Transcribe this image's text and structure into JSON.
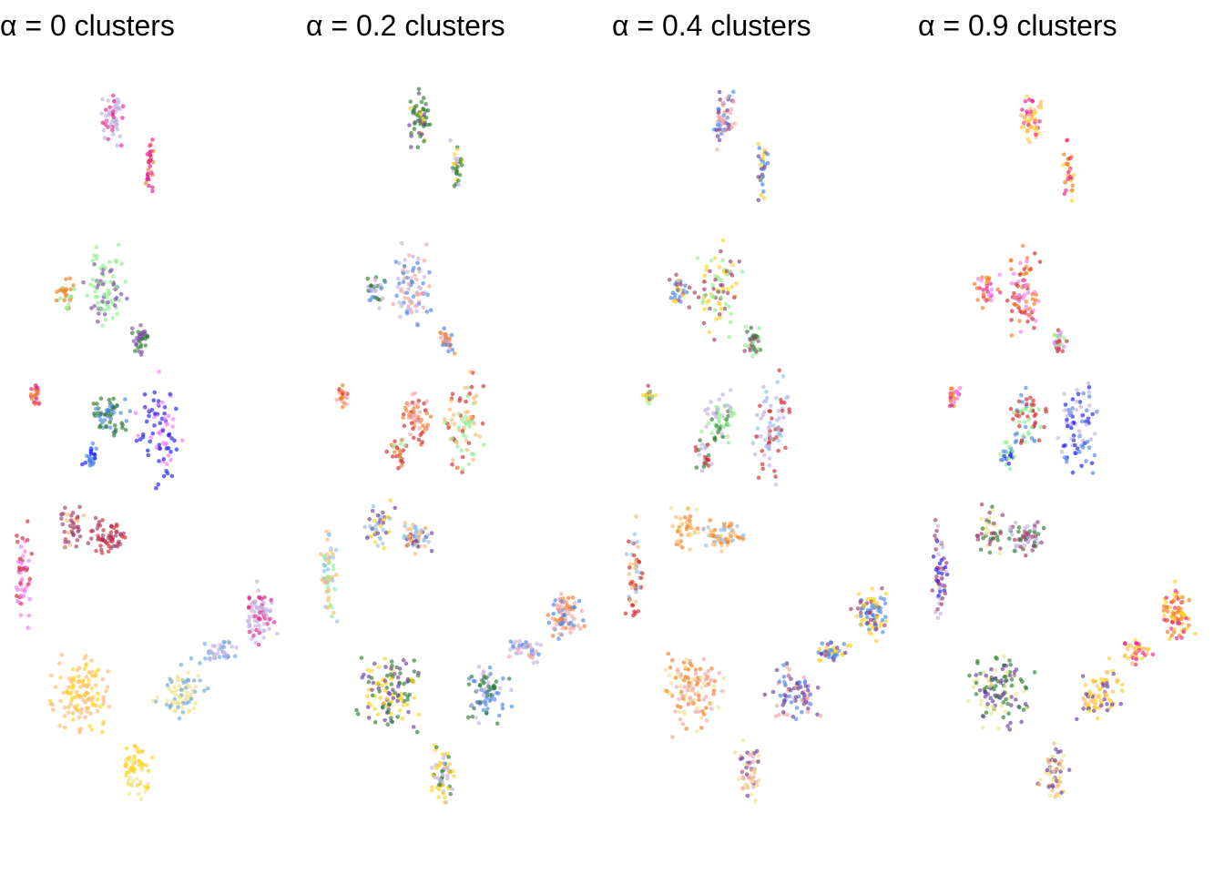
{
  "figure": {
    "panel_titles": [
      "α = 0 clusters",
      "α = 0.2 clusters",
      "α = 0.4 clusters",
      "α = 0.9 clusters"
    ]
  },
  "chart_data": [
    {
      "type": "scatter",
      "title": "α = 0 clusters",
      "xlabel": "",
      "ylabel": "",
      "axes_visible": false,
      "grid": false,
      "legend": "none",
      "point_opacity": 0.65,
      "color_by_region": [
        "#c3b1e1",
        "#e91e8c",
        "#f47c20",
        "#90ee90",
        "#7b4fa0",
        "#2e7d32",
        "#4a86e8",
        "#1a1aee",
        "#f07bf5",
        "#d1282e",
        "#a0396b",
        "#ffb86c",
        "#ffd21f",
        "#ece38c",
        "#6fa8dc"
      ]
    },
    {
      "type": "scatter",
      "title": "α = 0.2 clusters",
      "xlabel": "",
      "ylabel": "",
      "axes_visible": false,
      "grid": false,
      "legend": "none",
      "point_opacity": 0.65,
      "color_by_region": [
        "#6a3d9a",
        "#ffd21f",
        "#2e7d32",
        "#c3b1e1",
        "#4a86e8",
        "#f4a3a3",
        "#f47c20",
        "#d1282e",
        "#90ee90",
        "#ffb86c",
        "#8ec1ec"
      ]
    },
    {
      "type": "scatter",
      "title": "α = 0.4 clusters",
      "xlabel": "",
      "ylabel": "",
      "axes_visible": false,
      "grid": false,
      "legend": "none",
      "point_opacity": 0.65,
      "color_by_region": [
        "#f4a3a3",
        "#6a3d9a",
        "#4a86e8",
        "#ffd21f",
        "#a0396b",
        "#90ee90",
        "#2e7d32",
        "#c3b1e1",
        "#d1282e",
        "#8ec1ec",
        "#ffb86c",
        "#f47c20",
        "#ece38c"
      ]
    },
    {
      "type": "scatter",
      "title": "α = 0.9 clusters",
      "xlabel": "",
      "ylabel": "",
      "axes_visible": false,
      "grid": false,
      "legend": "none",
      "point_opacity": 0.65,
      "color_by_region": [
        "#ffb86c",
        "#ffd21f",
        "#e91e8c",
        "#f47c20",
        "#f07bf5",
        "#d1282e",
        "#90ee90",
        "#4a86e8",
        "#1a1aee",
        "#c3b1e1",
        "#a0396b",
        "#2e7d32",
        "#ece38c",
        "#6a3d9a"
      ]
    }
  ]
}
